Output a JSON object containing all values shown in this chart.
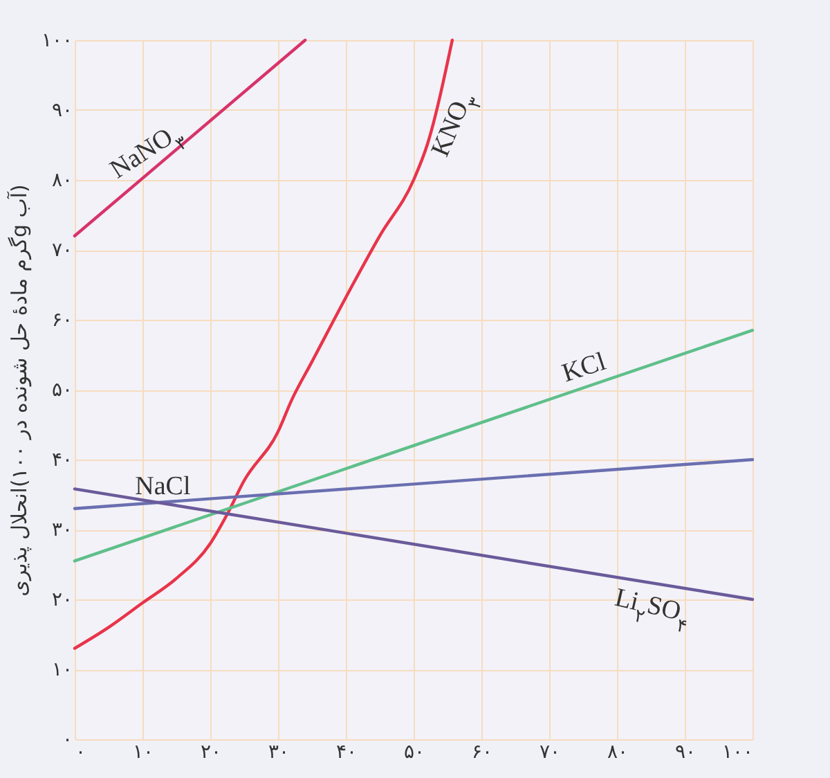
{
  "chart_data": {
    "type": "line",
    "ylabel": "انحلال پذیری(گرم مادهٔ حل شونده در ۱۰۰g آب)",
    "xlim": [
      0,
      100
    ],
    "ylim": [
      0,
      100
    ],
    "xticks": [
      {
        "value": 0,
        "label": "۰"
      },
      {
        "value": 10,
        "label": "۱۰"
      },
      {
        "value": 20,
        "label": "۲۰"
      },
      {
        "value": 30,
        "label": "۳۰"
      },
      {
        "value": 40,
        "label": "۴۰"
      },
      {
        "value": 50,
        "label": "۵۰"
      },
      {
        "value": 60,
        "label": "۶۰"
      },
      {
        "value": 70,
        "label": "۷۰"
      },
      {
        "value": 80,
        "label": "۸۰"
      },
      {
        "value": 90,
        "label": "۹۰"
      },
      {
        "value": 100,
        "label": "۱۰۰"
      }
    ],
    "yticks": [
      {
        "value": 0,
        "label": "۰"
      },
      {
        "value": 10,
        "label": "۱۰"
      },
      {
        "value": 20,
        "label": "۲۰"
      },
      {
        "value": 30,
        "label": "۳۰"
      },
      {
        "value": 40,
        "label": "۴۰"
      },
      {
        "value": 50,
        "label": "۵۰"
      },
      {
        "value": 60,
        "label": "۶۰"
      },
      {
        "value": 70,
        "label": "۷۰"
      },
      {
        "value": 80,
        "label": "۸۰"
      },
      {
        "value": 90,
        "label": "۹۰"
      },
      {
        "value": 100,
        "label": "۱۰۰"
      }
    ],
    "grid": true,
    "legend": false,
    "series": [
      {
        "name": "NaNO$_{۳}$",
        "color": "#d8336a",
        "x": [
          0,
          34
        ],
        "values": [
          72,
          100
        ]
      },
      {
        "name": "KNO$_{۳}$",
        "color": "#e8344a",
        "x": [
          0,
          5,
          10,
          15,
          20,
          22.4,
          25,
          30,
          32,
          35,
          41,
          45,
          50,
          52,
          55.7
        ],
        "values": [
          13,
          16,
          19.5,
          23,
          28,
          32,
          37,
          44,
          48.5,
          54,
          65,
          72,
          80,
          85,
          100
        ]
      },
      {
        "name": "KCl",
        "color": "#5fbf8a",
        "x": [
          0,
          100
        ],
        "values": [
          25.5,
          58.5
        ]
      },
      {
        "name": "NaCl",
        "color": "#6a6fb0",
        "x": [
          0,
          100
        ],
        "values": [
          33,
          40
        ]
      },
      {
        "name": "Li$_{۲}$SO$_{۴}$",
        "color": "#6a5a9a",
        "x": [
          0,
          100
        ],
        "values": [
          35.8,
          20
        ]
      }
    ]
  }
}
